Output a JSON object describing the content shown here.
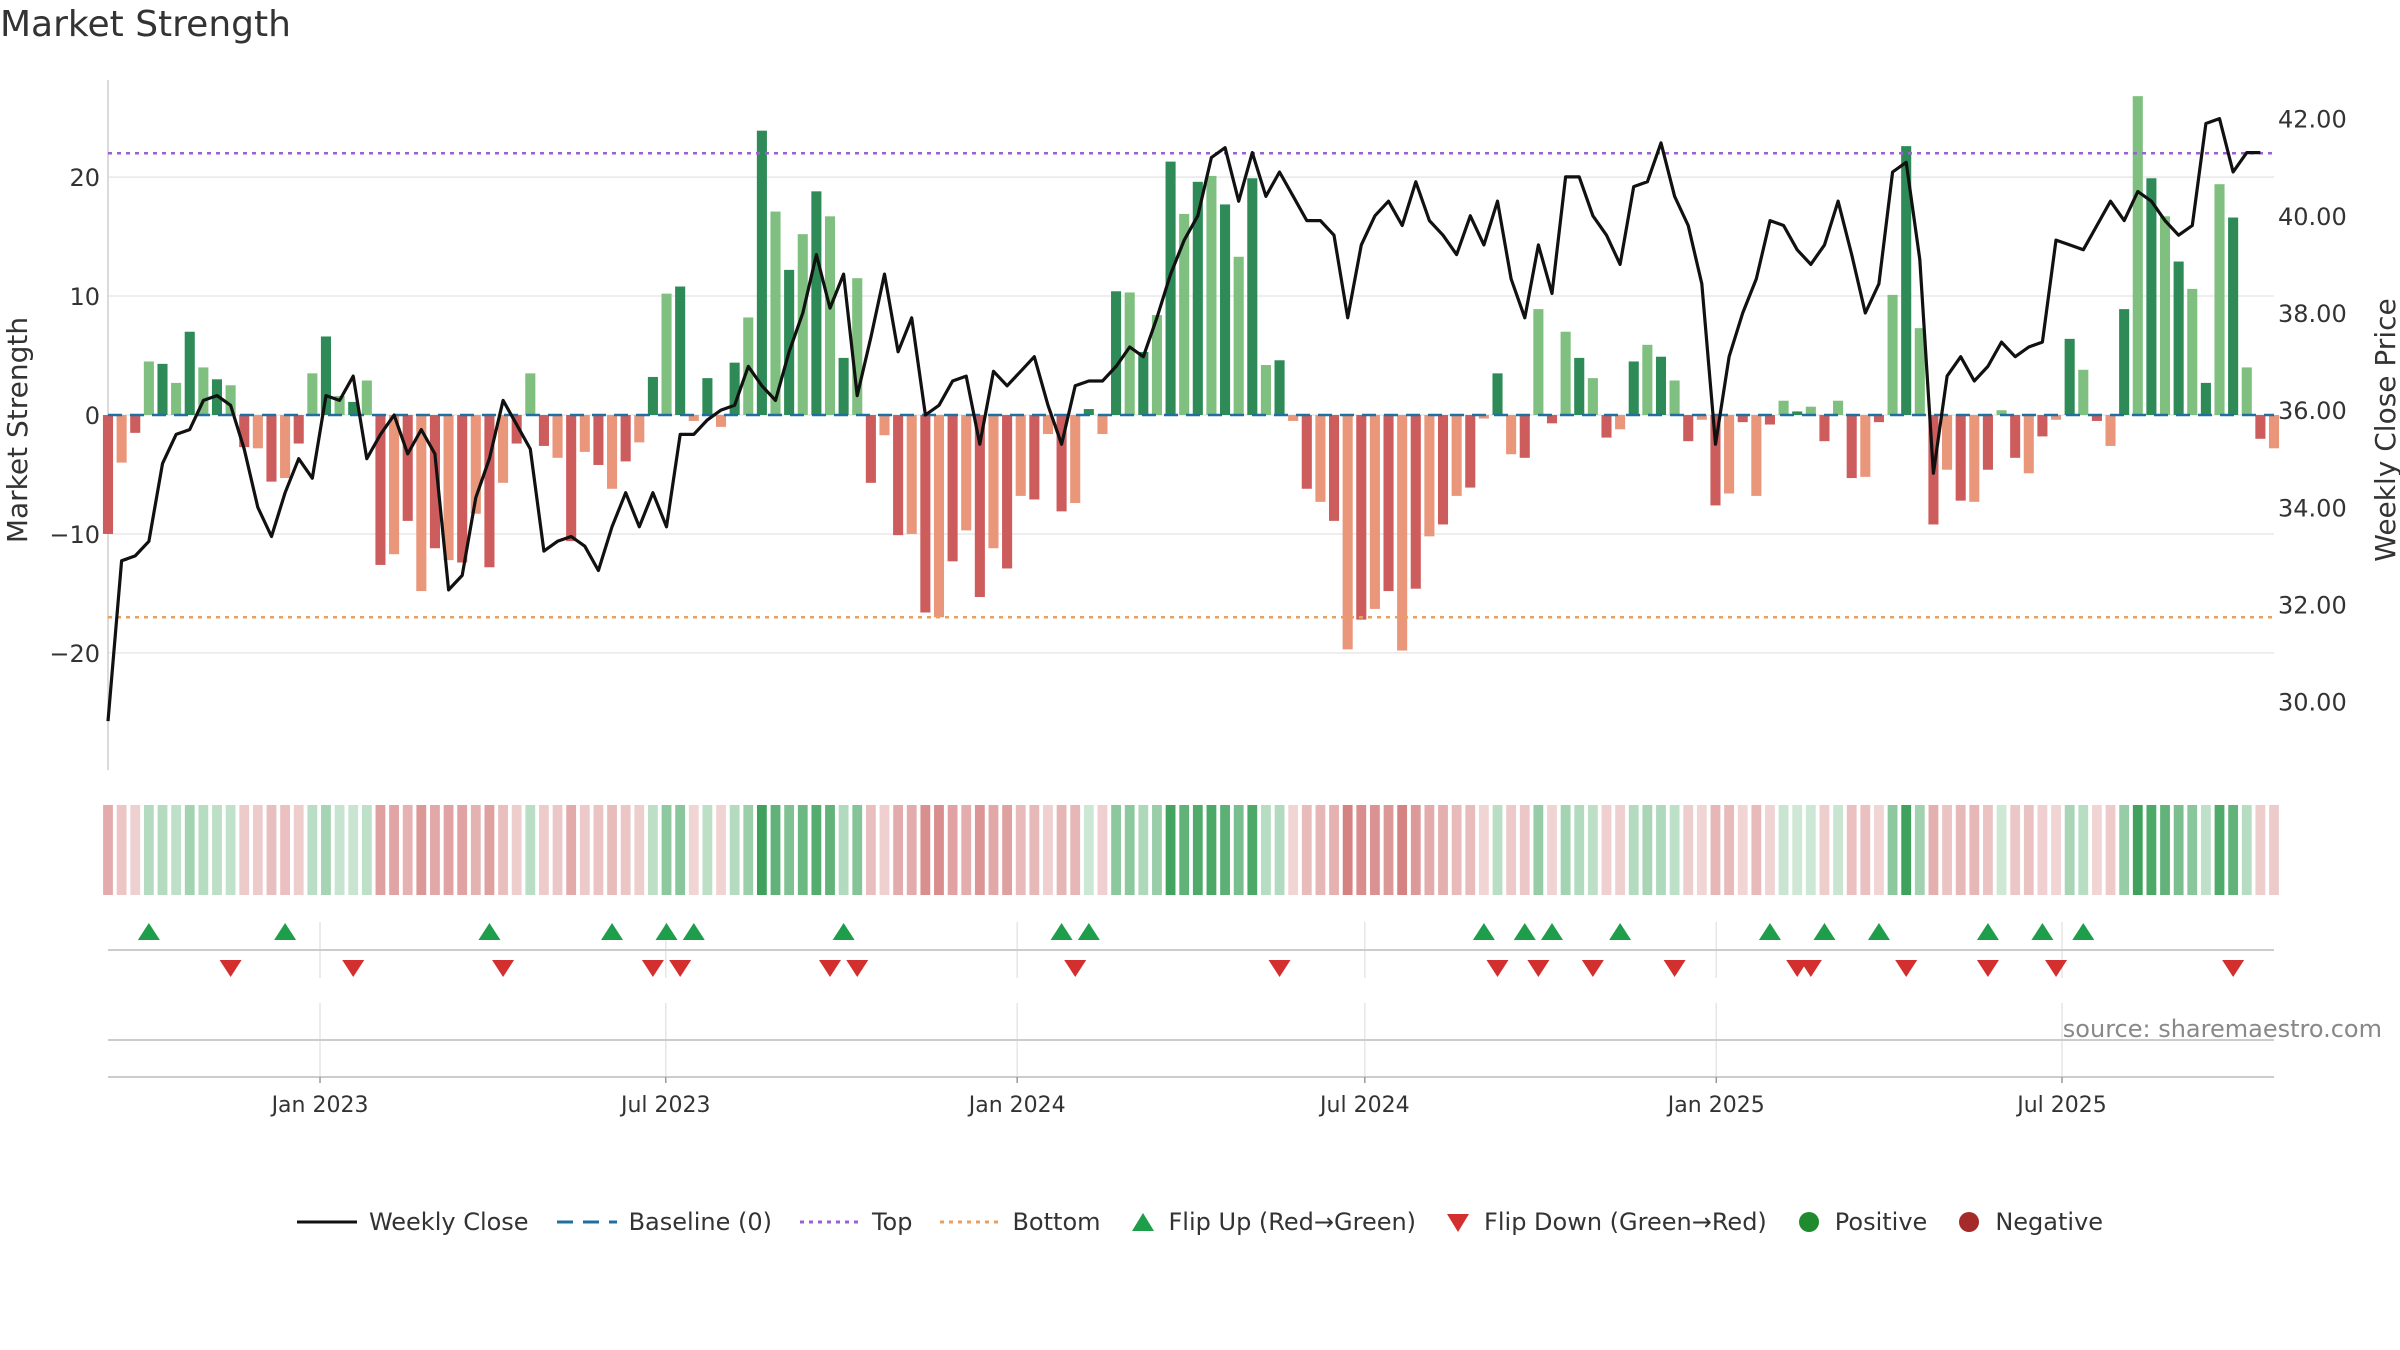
{
  "chart_data": {
    "type": "bar+line",
    "title": "Market Strength",
    "ylabel_left": "Market Strength",
    "ylabel_right": "Weekly Close Price",
    "source": "source: sharemaestro.com",
    "left_ylim": [
      -29,
      29
    ],
    "left_ticks": [
      -20,
      -10,
      0,
      10,
      20
    ],
    "left_tick_labels": [
      "−20",
      "−10",
      "0",
      "10",
      "20"
    ],
    "right_ylim": [
      28.8,
      43.0
    ],
    "right_ticks": [
      30,
      32,
      34,
      36,
      38,
      40,
      42
    ],
    "right_tick_labels": [
      "30.00",
      "32.00",
      "34.00",
      "36.00",
      "38.00",
      "40.00",
      "42.00"
    ],
    "x_start": "2022-09-12",
    "x_end": "2025-10-20",
    "x_ticks": [
      "2023-01-01",
      "2023-07-01",
      "2024-01-01",
      "2024-07-01",
      "2025-01-01",
      "2025-07-01"
    ],
    "x_tick_labels": [
      "Jan 2023",
      "Jul 2023",
      "Jan 2024",
      "Jul 2024",
      "Jan 2025",
      "Jul 2025"
    ],
    "top_line": 22,
    "bottom_line": -17,
    "strength": [
      -10,
      -4,
      -1.5,
      4.5,
      4.3,
      2.7,
      7,
      4,
      3,
      2.5,
      -2.7,
      -2.8,
      -5.6,
      -5.3,
      -2.4,
      3.5,
      6.6,
      1.6,
      1.1,
      2.9,
      -12.6,
      -11.7,
      -8.9,
      -14.8,
      -11.2,
      -12.2,
      -12.4,
      -8.3,
      -12.8,
      -5.7,
      -2.4,
      3.5,
      -2.6,
      -3.6,
      -10.6,
      -3.1,
      -4.2,
      -6.2,
      -3.9,
      -2.3,
      3.2,
      10.2,
      10.8,
      -0.5,
      3.1,
      -1,
      4.4,
      8.2,
      23.9,
      17.1,
      12.2,
      15.2,
      18.8,
      16.7,
      4.8,
      11.5,
      -5.7,
      -1.7,
      -10.1,
      -10,
      -16.6,
      -17,
      -12.3,
      -9.7,
      -15.3,
      -11.2,
      -12.9,
      -6.8,
      -7.1,
      -1.6,
      -8.1,
      -7.4,
      0.5,
      -1.6,
      10.4,
      10.3,
      5.3,
      8.4,
      21.3,
      16.9,
      19.6,
      20.1,
      17.7,
      13.3,
      19.9,
      4.2,
      4.6,
      -0.5,
      -6.2,
      -7.3,
      -8.9,
      -19.7,
      -17.2,
      -16.3,
      -14.8,
      -19.8,
      -14.6,
      -10.2,
      -9.2,
      -6.8,
      -6.1,
      -0.3,
      3.5,
      -3.3,
      -3.6,
      8.9,
      -0.7,
      7,
      4.8,
      3.1,
      -1.9,
      -1.2,
      4.5,
      5.9,
      4.9,
      2.9,
      -2.2,
      -0.4,
      -7.6,
      -6.6,
      -0.6,
      -6.8,
      -0.8,
      1.2,
      0.3,
      0.7,
      -2.2,
      1.2,
      -5.3,
      -5.2,
      -0.6,
      10.1,
      22.6,
      7.3,
      -9.2,
      -4.6,
      -7.2,
      -7.3,
      -4.6,
      0.4,
      -3.6,
      -4.9,
      -1.8,
      -0.4,
      6.4,
      3.8,
      -0.5,
      -2.6,
      8.9,
      26.8,
      19.9,
      16.7,
      12.9,
      10.6,
      2.7,
      19.4,
      16.6,
      4,
      -2,
      -2.8
    ],
    "close": [
      29.6,
      32.9,
      33,
      33.3,
      34.9,
      35.5,
      35.6,
      36.2,
      36.3,
      36.1,
      35.2,
      34,
      33.4,
      34.3,
      35,
      34.6,
      36.3,
      36.2,
      36.7,
      35,
      35.5,
      35.9,
      35.1,
      35.6,
      35.1,
      32.3,
      32.6,
      34.2,
      35,
      36.2,
      35.7,
      35.2,
      33.1,
      33.3,
      33.4,
      33.2,
      32.7,
      33.6,
      34.3,
      33.6,
      34.3,
      33.6,
      35.5,
      35.5,
      35.8,
      36,
      36.1,
      36.9,
      36.5,
      36.2,
      37.2,
      38,
      39.2,
      38.1,
      38.8,
      36.3,
      37.5,
      38.8,
      37.2,
      37.9,
      35.9,
      36.1,
      36.6,
      36.7,
      35.3,
      36.8,
      36.5,
      36.8,
      37.1,
      36.1,
      35.3,
      36.5,
      36.6,
      36.6,
      36.9,
      37.3,
      37.1,
      37.9,
      38.8,
      39.5,
      40,
      41.2,
      41.4,
      40.3,
      41.3,
      40.4,
      40.9,
      40.4,
      39.9,
      39.9,
      39.6,
      37.9,
      39.4,
      40,
      40.3,
      39.8,
      40.7,
      39.9,
      39.6,
      39.2,
      40,
      39.4,
      40.3,
      38.7,
      37.9,
      39.4,
      38.4,
      40.8,
      40.8,
      40,
      39.6,
      39,
      40.6,
      40.7,
      41.5,
      40.4,
      39.8,
      38.6,
      35.3,
      37.1,
      38,
      38.7,
      39.9,
      39.8,
      39.3,
      39,
      39.4,
      40.3,
      39.2,
      38,
      38.6,
      40.9,
      41.1,
      39.1,
      34.7,
      36.7,
      37.1,
      36.6,
      36.9,
      37.4,
      37.1,
      37.3,
      37.4,
      39.5,
      39.4,
      39.3,
      39.8,
      40.3,
      39.9,
      40.5,
      40.3,
      39.9,
      39.6,
      39.8,
      41.9,
      42,
      40.9,
      41.3,
      41.3
    ],
    "flip_up_weeks": [
      3,
      13,
      28,
      37,
      41,
      43,
      54,
      70,
      72,
      101,
      104,
      106,
      111,
      122,
      126,
      130,
      138,
      142,
      145
    ],
    "flip_down_weeks": [
      9,
      18,
      29,
      40,
      42,
      53,
      55,
      71,
      86,
      102,
      105,
      109,
      115,
      124,
      125,
      132,
      138,
      143,
      156
    ],
    "legend": [
      {
        "label": "Weekly Close",
        "kind": "line",
        "color": "#111111"
      },
      {
        "label": "Baseline (0)",
        "kind": "dash",
        "color": "#1f6f9f"
      },
      {
        "label": "Top",
        "kind": "dot",
        "color": "#9b5fd6"
      },
      {
        "label": "Bottom",
        "kind": "dot",
        "color": "#e8a060"
      },
      {
        "label": "Flip Up (Red→Green)",
        "kind": "up",
        "color": "#1e9e4a"
      },
      {
        "label": "Flip Down (Green→Red)",
        "kind": "down",
        "color": "#d32f2f"
      },
      {
        "label": "Positive",
        "kind": "circle",
        "color": "#1f8a2e"
      },
      {
        "label": "Negative",
        "kind": "circle",
        "color": "#a52a2a"
      }
    ],
    "colors": {
      "pos_strong": "#2e8b57",
      "pos_light": "#7fbf7f",
      "neg_strong": "#cd5c5c",
      "neg_light": "#e9967a",
      "line": "#111111",
      "grid": "#e8e8e8"
    }
  }
}
